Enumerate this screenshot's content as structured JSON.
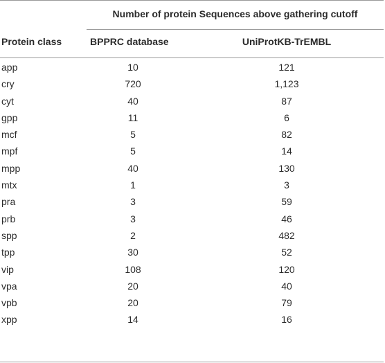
{
  "table": {
    "group_header": "Number of protein Sequences above gathering cutoff",
    "columns": [
      "Protein class",
      "BPPRC database",
      "UniProtKB-TrEMBL"
    ],
    "rows": [
      [
        "app",
        "10",
        "121"
      ],
      [
        "cry",
        "720",
        "1,123"
      ],
      [
        "cyt",
        "40",
        "87"
      ],
      [
        "gpp",
        "11",
        "6"
      ],
      [
        "mcf",
        "5",
        "82"
      ],
      [
        "mpf",
        "5",
        "14"
      ],
      [
        "mpp",
        "40",
        "130"
      ],
      [
        "mtx",
        "1",
        "3"
      ],
      [
        "pra",
        "3",
        "59"
      ],
      [
        "prb",
        "3",
        "46"
      ],
      [
        "spp",
        "2",
        "482"
      ],
      [
        "tpp",
        "30",
        "52"
      ],
      [
        "vip",
        "108",
        "120"
      ],
      [
        "vpa",
        "20",
        "40"
      ],
      [
        "vpb",
        "20",
        "79"
      ],
      [
        "xpp",
        "14",
        "16"
      ]
    ]
  }
}
